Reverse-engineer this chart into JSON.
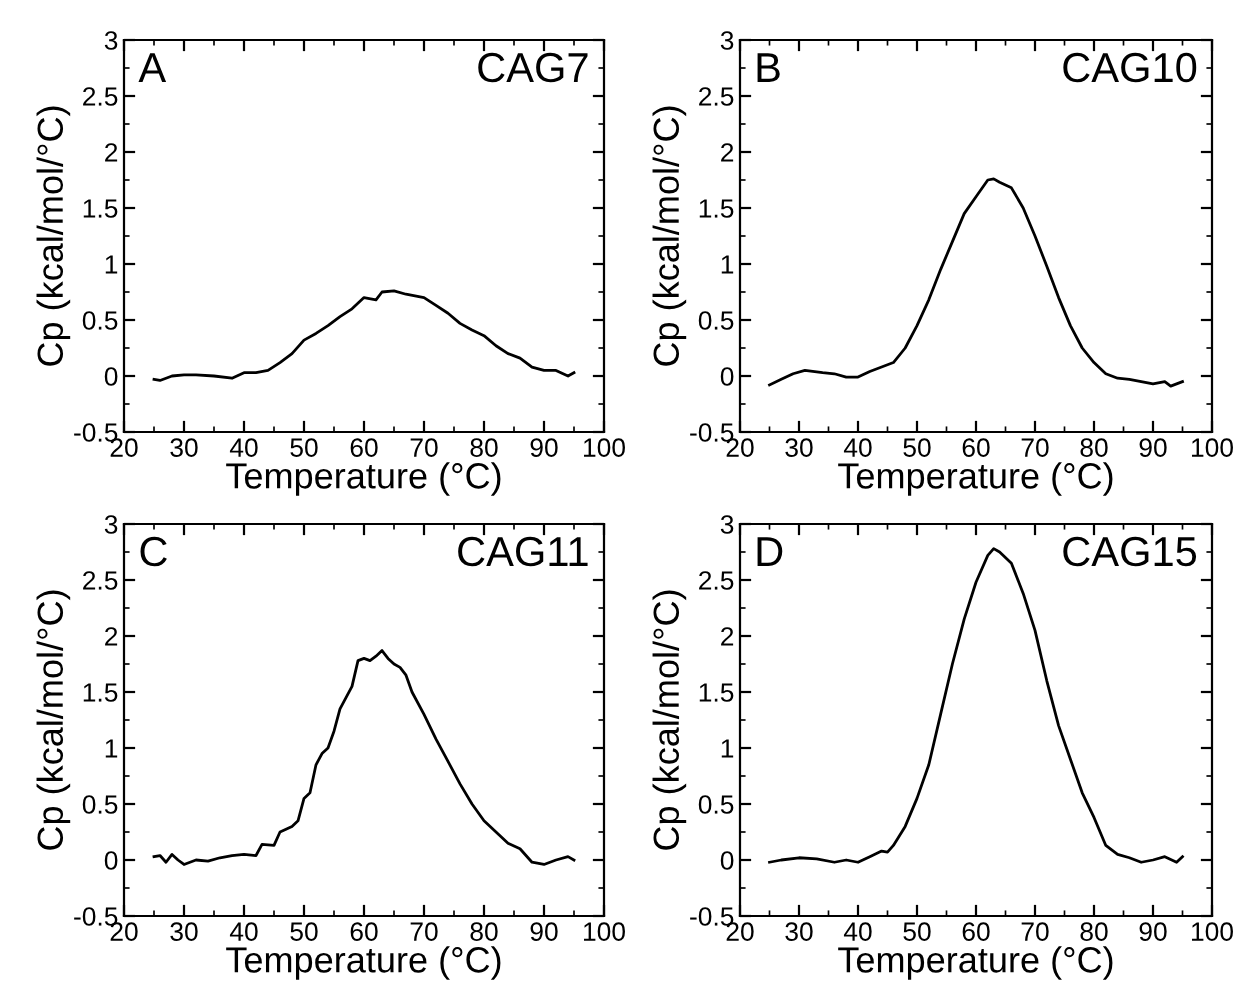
{
  "chart_data": [
    {
      "type": "line",
      "annotations": [
        "A",
        "CAG7"
      ],
      "xlabel": "Temperature (°C)",
      "ylabel": "Cp (kcal/mol/°C)",
      "xlim": [
        20,
        100
      ],
      "ylim": [
        -0.5,
        3
      ],
      "xticks": [
        20,
        30,
        40,
        50,
        60,
        70,
        80,
        90,
        100
      ],
      "yticks": [
        -0.5,
        0,
        0.5,
        1,
        1.5,
        2,
        2.5,
        3
      ],
      "grid": false,
      "legend": false,
      "series": [
        {
          "color": "#000000",
          "x": [
            25,
            26,
            28,
            30,
            32,
            35,
            38,
            40,
            42,
            44,
            46,
            48,
            50,
            52,
            54,
            56,
            58,
            60,
            62,
            63,
            65,
            67,
            70,
            72,
            74,
            76,
            78,
            80,
            82,
            84,
            86,
            88,
            90,
            92,
            94,
            95
          ],
          "values": [
            -0.03,
            -0.04,
            0,
            0.01,
            0.01,
            0,
            -0.02,
            0.03,
            0.03,
            0.05,
            0.12,
            0.2,
            0.32,
            0.38,
            0.45,
            0.53,
            0.6,
            0.7,
            0.68,
            0.75,
            0.76,
            0.73,
            0.7,
            0.63,
            0.56,
            0.47,
            0.41,
            0.36,
            0.27,
            0.2,
            0.16,
            0.08,
            0.05,
            0.05,
            0,
            0.03
          ]
        }
      ]
    },
    {
      "type": "line",
      "annotations": [
        "B",
        "CAG10"
      ],
      "xlabel": "Temperature (°C)",
      "ylabel": "Cp (kcal/mol/°C)",
      "xlim": [
        20,
        100
      ],
      "ylim": [
        -0.5,
        3
      ],
      "xticks": [
        20,
        30,
        40,
        50,
        60,
        70,
        80,
        90,
        100
      ],
      "yticks": [
        -0.5,
        0,
        0.5,
        1,
        1.5,
        2,
        2.5,
        3
      ],
      "grid": false,
      "legend": false,
      "series": [
        {
          "color": "#000000",
          "x": [
            25,
            27,
            29,
            31,
            34,
            36,
            38,
            40,
            42,
            44,
            46,
            48,
            50,
            52,
            54,
            56,
            58,
            60,
            62,
            63,
            64,
            66,
            68,
            70,
            72,
            74,
            76,
            78,
            80,
            82,
            84,
            86,
            88,
            90,
            92,
            93,
            95
          ],
          "values": [
            -0.08,
            -0.03,
            0.02,
            0.05,
            0.03,
            0.02,
            -0.01,
            -0.01,
            0.04,
            0.08,
            0.12,
            0.25,
            0.45,
            0.68,
            0.95,
            1.2,
            1.45,
            1.6,
            1.75,
            1.76,
            1.73,
            1.68,
            1.5,
            1.25,
            0.98,
            0.7,
            0.45,
            0.25,
            0.12,
            0.02,
            -0.02,
            -0.03,
            -0.05,
            -0.07,
            -0.05,
            -0.09,
            -0.05
          ]
        }
      ]
    },
    {
      "type": "line",
      "annotations": [
        "C",
        "CAG11"
      ],
      "xlabel": "Temperature (°C)",
      "ylabel": "Cp (kcal/mol/°C)",
      "xlim": [
        20,
        100
      ],
      "ylim": [
        -0.5,
        3
      ],
      "xticks": [
        20,
        30,
        40,
        50,
        60,
        70,
        80,
        90,
        100
      ],
      "yticks": [
        -0.5,
        0,
        0.5,
        1,
        1.5,
        2,
        2.5,
        3
      ],
      "grid": false,
      "legend": false,
      "series": [
        {
          "color": "#000000",
          "x": [
            25,
            26,
            27,
            28,
            29,
            30,
            32,
            34,
            36,
            38,
            40,
            42,
            43,
            45,
            46,
            48,
            49,
            50,
            51,
            52,
            53,
            54,
            55,
            56,
            57,
            58,
            59,
            60,
            61,
            62,
            63,
            64,
            65,
            66,
            67,
            68,
            70,
            72,
            74,
            76,
            78,
            80,
            82,
            84,
            86,
            88,
            90,
            92,
            94,
            95
          ],
          "values": [
            0.03,
            0.04,
            -0.02,
            0.05,
            0,
            -0.04,
            0,
            -0.01,
            0.02,
            0.04,
            0.05,
            0.04,
            0.14,
            0.13,
            0.25,
            0.3,
            0.35,
            0.55,
            0.6,
            0.85,
            0.95,
            1.0,
            1.15,
            1.35,
            1.45,
            1.55,
            1.78,
            1.8,
            1.78,
            1.82,
            1.87,
            1.8,
            1.75,
            1.72,
            1.65,
            1.5,
            1.3,
            1.08,
            0.88,
            0.68,
            0.5,
            0.35,
            0.25,
            0.15,
            0.1,
            -0.02,
            -0.04,
            0,
            0.03,
            0
          ]
        }
      ]
    },
    {
      "type": "line",
      "annotations": [
        "D",
        "CAG15"
      ],
      "xlabel": "Temperature (°C)",
      "ylabel": "Cp (kcal/mol/°C)",
      "xlim": [
        20,
        100
      ],
      "ylim": [
        -0.5,
        3
      ],
      "xticks": [
        20,
        30,
        40,
        50,
        60,
        70,
        80,
        90,
        100
      ],
      "yticks": [
        -0.5,
        0,
        0.5,
        1,
        1.5,
        2,
        2.5,
        3
      ],
      "grid": false,
      "legend": false,
      "series": [
        {
          "color": "#000000",
          "x": [
            25,
            27,
            30,
            33,
            36,
            38,
            40,
            42,
            44,
            45,
            46,
            48,
            50,
            52,
            54,
            56,
            58,
            60,
            62,
            63,
            64,
            66,
            68,
            70,
            72,
            74,
            76,
            78,
            80,
            82,
            84,
            86,
            88,
            90,
            92,
            94,
            95
          ],
          "values": [
            -0.02,
            0,
            0.02,
            0.01,
            -0.02,
            0,
            -0.02,
            0.03,
            0.08,
            0.07,
            0.13,
            0.3,
            0.55,
            0.85,
            1.3,
            1.75,
            2.15,
            2.48,
            2.72,
            2.78,
            2.75,
            2.65,
            2.38,
            2.05,
            1.6,
            1.2,
            0.9,
            0.6,
            0.38,
            0.13,
            0.05,
            0.02,
            -0.02,
            0,
            0.03,
            -0.02,
            0.03
          ]
        }
      ]
    }
  ]
}
